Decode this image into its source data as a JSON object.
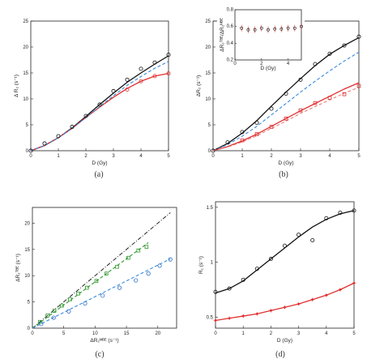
{
  "panel_labels": [
    "(a)",
    "(b)",
    "(c)",
    "(d)"
  ],
  "colors": {
    "black": "#111111",
    "red": "#e03030",
    "blue": "#2f6fc6",
    "dashblue": "#3a8ad8",
    "green": "#2e9a2e",
    "dashred": "#e37777"
  },
  "chart_data": [
    {
      "type": "line",
      "panel": "(a)",
      "xlabel": "D (Gy)",
      "ylabel": "Δ R₂ (s⁻¹)",
      "xlim": [
        0,
        5
      ],
      "ylim": [
        0,
        25
      ],
      "xticks": [
        "0",
        "1",
        "2",
        "3",
        "4",
        "5"
      ],
      "yticks": [
        "0",
        "5",
        "10",
        "15",
        "20",
        "25"
      ],
      "series": [
        {
          "style": "black-solid",
          "x": [
            0,
            0.5,
            1,
            1.5,
            2,
            2.5,
            3,
            3.5,
            4,
            4.5,
            5
          ],
          "values": [
            0,
            1.0,
            2.5,
            4.4,
            6.6,
            8.9,
            11.1,
            13.2,
            15.0,
            16.7,
            18.3
          ]
        },
        {
          "style": "red-solid",
          "x": [
            0,
            0.5,
            1,
            1.5,
            2,
            2.5,
            3,
            3.5,
            4,
            4.5,
            5
          ],
          "values": [
            0,
            1.0,
            2.5,
            4.3,
            6.4,
            8.4,
            10.3,
            12.0,
            13.4,
            14.4,
            14.9
          ]
        },
        {
          "style": "blue-dashed",
          "x": [
            0,
            0.5,
            1,
            1.5,
            2,
            2.5,
            3,
            3.5,
            4,
            4.5,
            5
          ],
          "values": [
            0,
            1.0,
            2.5,
            4.3,
            6.4,
            8.5,
            10.6,
            12.6,
            14.3,
            15.9,
            17.2
          ]
        },
        {
          "style": "black-circles",
          "x": [
            0,
            0.5,
            1,
            1.5,
            2,
            2.5,
            3,
            3.5,
            4,
            4.5,
            5
          ],
          "values": [
            0,
            1.4,
            2.8,
            4.6,
            6.7,
            8.9,
            11.5,
            13.7,
            15.8,
            17.0,
            18.5
          ]
        },
        {
          "style": "red-circles",
          "x": [
            3.5,
            4,
            4.5,
            5
          ],
          "values": [
            11.8,
            13.4,
            14.4,
            14.9
          ]
        }
      ]
    },
    {
      "type": "line",
      "panel": "(b)",
      "xlabel": "D (Gy)",
      "ylabel": "ΔR₂ (s⁻¹)",
      "xlim": [
        0,
        5
      ],
      "ylim": [
        0,
        25
      ],
      "xticks": [
        "0",
        "1",
        "2",
        "3",
        "4",
        "5"
      ],
      "yticks": [
        "0",
        "5",
        "10",
        "15",
        "20",
        "25"
      ],
      "series": [
        {
          "style": "black-solid",
          "x": [
            0,
            0.5,
            1,
            1.5,
            2,
            2.5,
            3,
            3.5,
            4,
            4.5,
            5
          ],
          "values": [
            0,
            1.4,
            3.4,
            5.8,
            8.6,
            11.3,
            13.9,
            16.4,
            18.6,
            20.3,
            21.8
          ]
        },
        {
          "style": "blue-dashed",
          "x": [
            0,
            0.5,
            1,
            1.5,
            2,
            2.5,
            3,
            3.5,
            4,
            4.5,
            5
          ],
          "values": [
            0,
            1.2,
            2.8,
            4.7,
            6.9,
            9.1,
            11.3,
            13.4,
            15.4,
            17.3,
            19.0
          ]
        },
        {
          "style": "red-solid",
          "x": [
            0,
            0.5,
            1,
            1.5,
            2,
            2.5,
            3,
            3.5,
            4,
            4.5,
            5
          ],
          "values": [
            0,
            0.8,
            1.9,
            3.2,
            4.7,
            6.2,
            7.7,
            9.1,
            10.5,
            11.9,
            13.1
          ]
        },
        {
          "style": "red-dashed",
          "x": [
            0,
            0.5,
            1,
            1.5,
            2,
            2.5,
            3,
            3.5,
            4,
            4.5,
            5
          ],
          "values": [
            0,
            0.7,
            1.7,
            2.9,
            4.3,
            5.7,
            7.2,
            8.5,
            9.8,
            11.1,
            12.2
          ]
        },
        {
          "style": "black-circles",
          "x": [
            0,
            0.5,
            1,
            1.5,
            2,
            2.5,
            3,
            3.5,
            4,
            4.5,
            5
          ],
          "values": [
            0,
            1.6,
            3.6,
            5.4,
            8.1,
            11.0,
            13.7,
            16.7,
            18.7,
            20.3,
            22.0
          ]
        },
        {
          "style": "red-squares",
          "x": [
            1,
            1.5,
            2,
            2.5,
            3,
            3.5,
            4,
            4.5,
            5
          ],
          "values": [
            2.0,
            3.2,
            4.6,
            6.2,
            7.8,
            9.2,
            10.2,
            10.9,
            12.5
          ]
        }
      ],
      "inset": {
        "ylabel": "ΔR₂ᵀᴮᴱ/ΔR₂ᴹᴮᴱ",
        "xlabel": "D (Gy)",
        "xlim": [
          0,
          5
        ],
        "ylim": [
          0.2,
          0.8
        ],
        "xticks": [
          "0",
          "2",
          "4"
        ],
        "yticks": [
          "0.2",
          "0.4",
          "0.6",
          "0.8"
        ],
        "points": {
          "x": [
            0.5,
            1,
            1.5,
            2,
            2.5,
            3,
            3.5,
            4,
            4.5,
            5
          ],
          "values": [
            0.58,
            0.56,
            0.56,
            0.58,
            0.56,
            0.57,
            0.57,
            0.58,
            0.58,
            0.6
          ]
        }
      }
    },
    {
      "type": "scatter",
      "panel": "(c)",
      "xlabel": "ΔR₂ᴹᴮᴱ (s⁻¹)",
      "ylabel": "ΔR₂ᵀᴮᴱ (s⁻¹)",
      "xlim": [
        0,
        23
      ],
      "ylim": [
        0,
        23
      ],
      "xticks": [
        "0",
        "5",
        "10",
        "15",
        "20"
      ],
      "yticks": [
        "0",
        "5",
        "10",
        "15",
        "20"
      ],
      "series": [
        {
          "style": "black-dashdot",
          "x": [
            0,
            22
          ],
          "values": [
            0,
            22
          ]
        },
        {
          "style": "green-dashed",
          "x": [
            0,
            18.5
          ],
          "values": [
            0,
            16.3
          ]
        },
        {
          "style": "blue-dashed",
          "x": [
            0,
            22
          ],
          "values": [
            0,
            13.2
          ]
        },
        {
          "style": "green-squares",
          "x": [
            1.2,
            2.4,
            3.5,
            4.7,
            6.0,
            7.3,
            8.7,
            10.2,
            11.8,
            13.5,
            15.3,
            16.9,
            18.2
          ],
          "values": [
            1.2,
            2.4,
            3.3,
            4.3,
            5.5,
            6.6,
            7.7,
            9.0,
            10.4,
            11.7,
            13.4,
            14.8,
            15.5
          ]
        },
        {
          "style": "blue-circles",
          "x": [
            1.4,
            3.4,
            5.8,
            8.4,
            11.2,
            13.9,
            16.5,
            18.5,
            20.3,
            22.0
          ],
          "values": [
            0.8,
            2.0,
            3.2,
            4.7,
            6.2,
            7.7,
            9.1,
            10.4,
            11.9,
            13.1
          ]
        }
      ]
    },
    {
      "type": "line",
      "panel": "(d)",
      "xlabel": "D (Gy)",
      "ylabel": "R₁ (s⁻¹)",
      "xlim": [
        0,
        5
      ],
      "ylim": [
        0.4,
        1.55
      ],
      "xticks": [
        "0",
        "1",
        "2",
        "3",
        "4",
        "5"
      ],
      "yticks": [
        "0.5",
        "1",
        "1.5"
      ],
      "series": [
        {
          "style": "black-solid",
          "x": [
            0,
            0.5,
            1,
            1.5,
            2,
            2.5,
            3,
            3.5,
            4,
            4.5,
            5
          ],
          "values": [
            0.72,
            0.76,
            0.83,
            0.93,
            1.03,
            1.13,
            1.23,
            1.32,
            1.39,
            1.44,
            1.47
          ]
        },
        {
          "style": "black-circles",
          "x": [
            0,
            0.5,
            1,
            1.5,
            2,
            2.5,
            3,
            3.5,
            4,
            4.5,
            5
          ],
          "values": [
            0.73,
            0.76,
            0.84,
            0.94,
            1.03,
            1.15,
            1.25,
            1.2,
            1.4,
            1.45,
            1.47
          ]
        },
        {
          "style": "red-solid",
          "x": [
            0,
            0.5,
            1,
            1.5,
            2,
            2.5,
            3,
            3.5,
            4,
            4.5,
            5
          ],
          "values": [
            0.47,
            0.49,
            0.51,
            0.53,
            0.56,
            0.59,
            0.62,
            0.66,
            0.7,
            0.75,
            0.81
          ]
        },
        {
          "style": "red-stars",
          "x": [
            0,
            0.5,
            1,
            1.5,
            2,
            2.5,
            3,
            3.5,
            4,
            4.5,
            5
          ],
          "values": [
            0.47,
            0.49,
            0.51,
            0.53,
            0.56,
            0.59,
            0.62,
            0.66,
            0.7,
            0.75,
            0.81
          ]
        }
      ]
    }
  ]
}
